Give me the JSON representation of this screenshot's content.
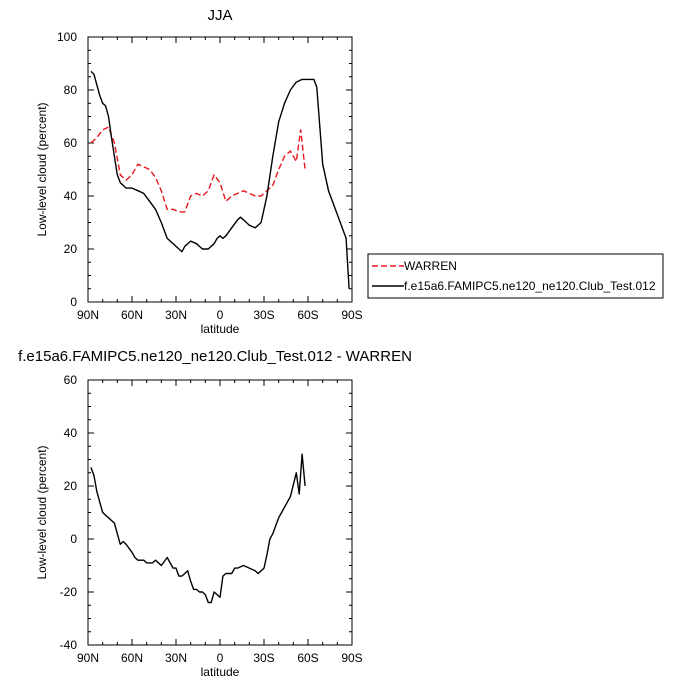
{
  "chart_data": [
    {
      "type": "line",
      "title": "JJA",
      "xlabel": "latitude",
      "ylabel": "Low-level cloud (percent)",
      "xlim": [
        90,
        -90
      ],
      "ylim": [
        0,
        100
      ],
      "x_ticks": [
        90,
        60,
        30,
        0,
        -30,
        -60,
        -90
      ],
      "x_tick_labels": [
        "90N",
        "60N",
        "30N",
        "0",
        "30S",
        "60S",
        "90S"
      ],
      "y_ticks": [
        0,
        20,
        40,
        60,
        80,
        100
      ],
      "y_tick_labels": [
        "0",
        "20",
        "40",
        "60",
        "80",
        "100"
      ],
      "grid": false,
      "legend_position": "right",
      "series": [
        {
          "name": "WARREN",
          "color": "#e8161e",
          "dash": true,
          "x": [
            88,
            84,
            80,
            76,
            72,
            68,
            64,
            60,
            56,
            52,
            48,
            44,
            40,
            36,
            32,
            28,
            24,
            20,
            16,
            12,
            8,
            4,
            0,
            -4,
            -8,
            -12,
            -16,
            -20,
            -24,
            -28,
            -32,
            -36,
            -40,
            -44,
            -48,
            -52,
            -55,
            -58
          ],
          "y": [
            60,
            62,
            65,
            66,
            60,
            48,
            46,
            48,
            52,
            51,
            50,
            47,
            42,
            35,
            35,
            34,
            34,
            40,
            41,
            40,
            42,
            48,
            45,
            38,
            40,
            41,
            42,
            41,
            40,
            40,
            42,
            44,
            50,
            55,
            57,
            53,
            65,
            50
          ]
        },
        {
          "name": "f.e15a6.FAMIPC5.ne120_ne120.Club_Test.012",
          "color": "#000000",
          "dash": false,
          "x": [
            88,
            86,
            84,
            82,
            80,
            78,
            76,
            74,
            72,
            70,
            68,
            66,
            64,
            60,
            56,
            52,
            48,
            44,
            40,
            36,
            32,
            28,
            26,
            24,
            20,
            16,
            12,
            8,
            4,
            2,
            0,
            -2,
            -4,
            -8,
            -12,
            -14,
            -16,
            -20,
            -24,
            -28,
            -32,
            -36,
            -40,
            -44,
            -48,
            -52,
            -56,
            -60,
            -64,
            -66,
            -70,
            -74,
            -78,
            -82,
            -86,
            -88
          ],
          "y": [
            87,
            86,
            82,
            78,
            75,
            74,
            70,
            62,
            55,
            48,
            45,
            44,
            43,
            43,
            42,
            41,
            38,
            35,
            30,
            24,
            22,
            20,
            19,
            21,
            23,
            22,
            20,
            20,
            22,
            24,
            25,
            24,
            25,
            28,
            31,
            32,
            31,
            29,
            28,
            30,
            40,
            55,
            68,
            75,
            80,
            83,
            84,
            84,
            84,
            81,
            52,
            42,
            36,
            30,
            24,
            5
          ]
        }
      ]
    },
    {
      "type": "line",
      "title": "f.e15a6.FAMIPC5.ne120_ne120.Club_Test.012 - WARREN",
      "xlabel": "latitude",
      "ylabel": "Low-level cloud (percent)",
      "xlim": [
        90,
        -90
      ],
      "ylim": [
        -40,
        60
      ],
      "x_ticks": [
        90,
        60,
        30,
        0,
        -30,
        -60,
        -90
      ],
      "x_tick_labels": [
        "90N",
        "60N",
        "30N",
        "0",
        "30S",
        "60S",
        "90S"
      ],
      "y_ticks": [
        -40,
        -20,
        0,
        20,
        40,
        60
      ],
      "y_tick_labels": [
        "-40",
        "-20",
        "0",
        "20",
        "40",
        "60"
      ],
      "grid": false,
      "series": [
        {
          "color": "#000000",
          "dash": false,
          "x": [
            88,
            86,
            84,
            82,
            80,
            76,
            72,
            70,
            68,
            66,
            64,
            60,
            58,
            56,
            52,
            50,
            48,
            46,
            44,
            40,
            36,
            32,
            30,
            28,
            26,
            24,
            22,
            20,
            18,
            16,
            14,
            12,
            10,
            8,
            6,
            4,
            2,
            0,
            -2,
            -4,
            -8,
            -10,
            -12,
            -16,
            -20,
            -24,
            -26,
            -28,
            -30,
            -32,
            -34,
            -36,
            -38,
            -40,
            -42,
            -44,
            -48,
            -52,
            -54,
            -56,
            -58
          ],
          "y": [
            27,
            24,
            18,
            14,
            10,
            8,
            6,
            2,
            -2,
            -1,
            -2,
            -5,
            -7,
            -8,
            -8,
            -9,
            -9,
            -9,
            -8,
            -10,
            -7,
            -11,
            -11,
            -14,
            -14,
            -13,
            -12,
            -16,
            -19,
            -19,
            -20,
            -20,
            -21,
            -24,
            -24,
            -20,
            -21,
            -22,
            -14,
            -13,
            -13,
            -11,
            -11,
            -10,
            -11,
            -12,
            -13,
            -12,
            -11,
            -6,
            0,
            2,
            5,
            8,
            10,
            12,
            16,
            25,
            17,
            32,
            20
          ]
        }
      ]
    }
  ]
}
